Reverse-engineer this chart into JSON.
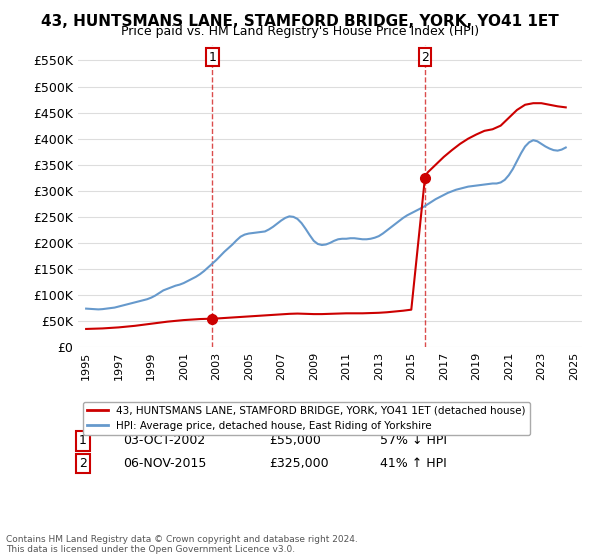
{
  "title": "43, HUNTSMANS LANE, STAMFORD BRIDGE, YORK, YO41 1ET",
  "subtitle": "Price paid vs. HM Land Registry's House Price Index (HPI)",
  "legend_line1": "43, HUNTSMANS LANE, STAMFORD BRIDGE, YORK, YO41 1ET (detached house)",
  "legend_line2": "HPI: Average price, detached house, East Riding of Yorkshire",
  "transaction1_date": 2002.75,
  "transaction1_price": 55000,
  "transaction1_label": "1",
  "transaction1_text": "03-OCT-2002",
  "transaction1_amount": "£55,000",
  "transaction1_hpi": "57% ↓ HPI",
  "transaction2_date": 2015.84,
  "transaction2_price": 325000,
  "transaction2_label": "2",
  "transaction2_text": "06-NOV-2015",
  "transaction2_amount": "£325,000",
  "transaction2_hpi": "41% ↑ HPI",
  "ylim": [
    0,
    580000
  ],
  "xlim": [
    1994.5,
    2025.5
  ],
  "yticks": [
    0,
    50000,
    100000,
    150000,
    200000,
    250000,
    300000,
    350000,
    400000,
    450000,
    500000,
    550000
  ],
  "ytick_labels": [
    "£0",
    "£50K",
    "£100K",
    "£150K",
    "£200K",
    "£250K",
    "£300K",
    "£350K",
    "£400K",
    "£450K",
    "£500K",
    "£550K"
  ],
  "xticks": [
    1995,
    1997,
    1999,
    2001,
    2003,
    2005,
    2007,
    2009,
    2011,
    2013,
    2015,
    2017,
    2019,
    2021,
    2023,
    2025
  ],
  "property_color": "#cc0000",
  "hpi_color": "#6699cc",
  "background_color": "#ffffff",
  "grid_color": "#dddddd",
  "copyright_text": "Contains HM Land Registry data © Crown copyright and database right 2024.\nThis data is licensed under the Open Government Licence v3.0.",
  "hpi_data_x": [
    1995.0,
    1995.25,
    1995.5,
    1995.75,
    1996.0,
    1996.25,
    1996.5,
    1996.75,
    1997.0,
    1997.25,
    1997.5,
    1997.75,
    1998.0,
    1998.25,
    1998.5,
    1998.75,
    1999.0,
    1999.25,
    1999.5,
    1999.75,
    2000.0,
    2000.25,
    2000.5,
    2000.75,
    2001.0,
    2001.25,
    2001.5,
    2001.75,
    2002.0,
    2002.25,
    2002.5,
    2002.75,
    2003.0,
    2003.25,
    2003.5,
    2003.75,
    2004.0,
    2004.25,
    2004.5,
    2004.75,
    2005.0,
    2005.25,
    2005.5,
    2005.75,
    2006.0,
    2006.25,
    2006.5,
    2006.75,
    2007.0,
    2007.25,
    2007.5,
    2007.75,
    2008.0,
    2008.25,
    2008.5,
    2008.75,
    2009.0,
    2009.25,
    2009.5,
    2009.75,
    2010.0,
    2010.25,
    2010.5,
    2010.75,
    2011.0,
    2011.25,
    2011.5,
    2011.75,
    2012.0,
    2012.25,
    2012.5,
    2012.75,
    2013.0,
    2013.25,
    2013.5,
    2013.75,
    2014.0,
    2014.25,
    2014.5,
    2014.75,
    2015.0,
    2015.25,
    2015.5,
    2015.75,
    2016.0,
    2016.25,
    2016.5,
    2016.75,
    2017.0,
    2017.25,
    2017.5,
    2017.75,
    2018.0,
    2018.25,
    2018.5,
    2018.75,
    2019.0,
    2019.25,
    2019.5,
    2019.75,
    2020.0,
    2020.25,
    2020.5,
    2020.75,
    2021.0,
    2021.25,
    2021.5,
    2021.75,
    2022.0,
    2022.25,
    2022.5,
    2022.75,
    2023.0,
    2023.25,
    2023.5,
    2023.75,
    2024.0,
    2024.25,
    2024.5
  ],
  "hpi_data_y": [
    74000,
    73500,
    73000,
    72500,
    73000,
    74000,
    75000,
    76000,
    78000,
    80000,
    82000,
    84000,
    86000,
    88000,
    90000,
    92000,
    95000,
    99000,
    104000,
    109000,
    112000,
    115000,
    118000,
    120000,
    123000,
    127000,
    131000,
    135000,
    140000,
    146000,
    153000,
    160000,
    167000,
    175000,
    183000,
    190000,
    197000,
    205000,
    212000,
    216000,
    218000,
    219000,
    220000,
    221000,
    222000,
    226000,
    231000,
    237000,
    243000,
    248000,
    251000,
    250000,
    246000,
    238000,
    227000,
    215000,
    204000,
    198000,
    196000,
    197000,
    200000,
    204000,
    207000,
    208000,
    208000,
    209000,
    209000,
    208000,
    207000,
    207000,
    208000,
    210000,
    213000,
    218000,
    224000,
    230000,
    236000,
    242000,
    248000,
    253000,
    257000,
    261000,
    265000,
    269000,
    274000,
    279000,
    284000,
    288000,
    292000,
    296000,
    299000,
    302000,
    304000,
    306000,
    308000,
    309000,
    310000,
    311000,
    312000,
    313000,
    314000,
    314000,
    316000,
    321000,
    330000,
    342000,
    357000,
    372000,
    385000,
    393000,
    397000,
    395000,
    390000,
    385000,
    381000,
    378000,
    377000,
    379000,
    383000
  ],
  "property_data_x": [
    1995.0,
    1995.5,
    1996.0,
    1996.5,
    1997.0,
    1997.5,
    1998.0,
    1998.5,
    1999.0,
    1999.5,
    2000.0,
    2000.5,
    2001.0,
    2001.5,
    2002.0,
    2002.5,
    2002.75,
    2003.0,
    2003.5,
    2004.0,
    2004.5,
    2005.0,
    2005.5,
    2006.0,
    2006.5,
    2007.0,
    2007.5,
    2008.0,
    2008.5,
    2009.0,
    2009.5,
    2010.0,
    2010.5,
    2011.0,
    2011.5,
    2012.0,
    2012.5,
    2013.0,
    2013.5,
    2014.0,
    2014.5,
    2015.0,
    2015.84,
    2016.0,
    2016.5,
    2017.0,
    2017.5,
    2018.0,
    2018.5,
    2019.0,
    2019.5,
    2020.0,
    2020.5,
    2021.0,
    2021.5,
    2022.0,
    2022.5,
    2023.0,
    2023.5,
    2024.0,
    2024.5
  ],
  "property_data_y": [
    35000,
    35500,
    36000,
    37000,
    38000,
    39500,
    41000,
    43000,
    45000,
    47000,
    49000,
    50500,
    52000,
    53000,
    54000,
    54500,
    55000,
    55000,
    56000,
    57000,
    58000,
    59000,
    60000,
    61000,
    62000,
    63000,
    64000,
    64500,
    64000,
    63500,
    63500,
    64000,
    64500,
    65000,
    65000,
    65000,
    65500,
    66000,
    67000,
    68500,
    70000,
    72000,
    325000,
    335000,
    350000,
    365000,
    378000,
    390000,
    400000,
    408000,
    415000,
    418000,
    425000,
    440000,
    455000,
    465000,
    468000,
    468000,
    465000,
    462000,
    460000
  ]
}
